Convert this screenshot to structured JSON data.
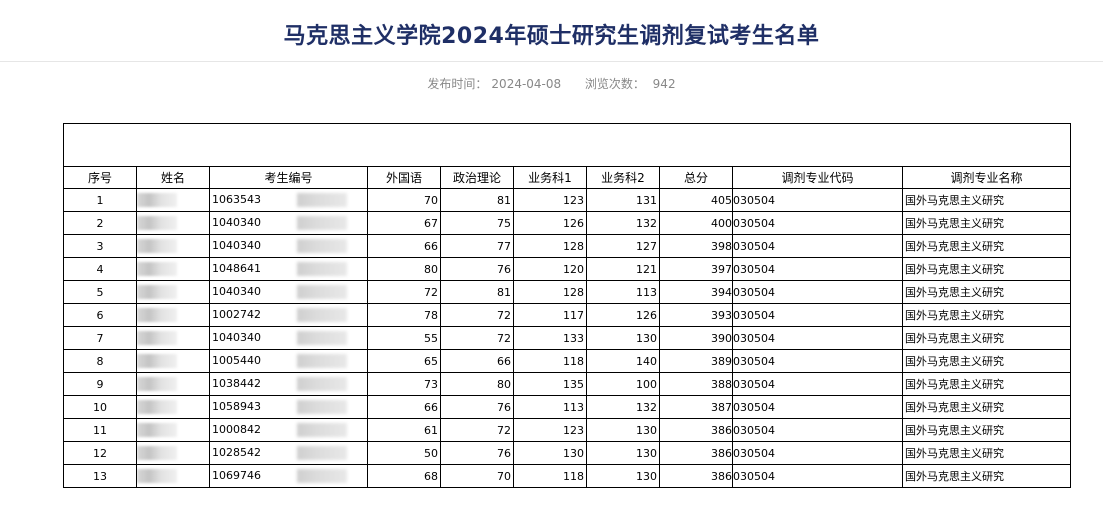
{
  "header": {
    "title": "马克思主义学院2024年硕士研究生调剂复试考生名单",
    "publish_label": "发布时间：",
    "publish_date": "2024-04-08",
    "views_label": "浏览次数：",
    "views_count": "942"
  },
  "table": {
    "columns": [
      "序号",
      "姓名",
      "考生编号",
      "外国语",
      "政治理论",
      "业务科1",
      "业务科2",
      "总分",
      "调剂专业代码",
      "调剂专业名称"
    ],
    "rows": [
      {
        "no": "1",
        "id": "1063543",
        "foreign": "70",
        "politics": "81",
        "sub1": "123",
        "sub2": "131",
        "total": "405",
        "code": "030504",
        "major": "国外马克思主义研究"
      },
      {
        "no": "2",
        "id": "1040340",
        "foreign": "67",
        "politics": "75",
        "sub1": "126",
        "sub2": "132",
        "total": "400",
        "code": "030504",
        "major": "国外马克思主义研究"
      },
      {
        "no": "3",
        "id": "1040340",
        "foreign": "66",
        "politics": "77",
        "sub1": "128",
        "sub2": "127",
        "total": "398",
        "code": "030504",
        "major": "国外马克思主义研究"
      },
      {
        "no": "4",
        "id": "1048641",
        "foreign": "80",
        "politics": "76",
        "sub1": "120",
        "sub2": "121",
        "total": "397",
        "code": "030504",
        "major": "国外马克思主义研究"
      },
      {
        "no": "5",
        "id": "1040340",
        "foreign": "72",
        "politics": "81",
        "sub1": "128",
        "sub2": "113",
        "total": "394",
        "code": "030504",
        "major": "国外马克思主义研究"
      },
      {
        "no": "6",
        "id": "1002742",
        "foreign": "78",
        "politics": "72",
        "sub1": "117",
        "sub2": "126",
        "total": "393",
        "code": "030504",
        "major": "国外马克思主义研究"
      },
      {
        "no": "7",
        "id": "1040340",
        "foreign": "55",
        "politics": "72",
        "sub1": "133",
        "sub2": "130",
        "total": "390",
        "code": "030504",
        "major": "国外马克思主义研究"
      },
      {
        "no": "8",
        "id": "1005440",
        "foreign": "65",
        "politics": "66",
        "sub1": "118",
        "sub2": "140",
        "total": "389",
        "code": "030504",
        "major": "国外马克思主义研究"
      },
      {
        "no": "9",
        "id": "1038442",
        "foreign": "73",
        "politics": "80",
        "sub1": "135",
        "sub2": "100",
        "total": "388",
        "code": "030504",
        "major": "国外马克思主义研究"
      },
      {
        "no": "10",
        "id": "1058943",
        "foreign": "66",
        "politics": "76",
        "sub1": "113",
        "sub2": "132",
        "total": "387",
        "code": "030504",
        "major": "国外马克思主义研究"
      },
      {
        "no": "11",
        "id": "1000842",
        "foreign": "61",
        "politics": "72",
        "sub1": "123",
        "sub2": "130",
        "total": "386",
        "code": "030504",
        "major": "国外马克思主义研究"
      },
      {
        "no": "12",
        "id": "1028542",
        "foreign": "50",
        "politics": "76",
        "sub1": "130",
        "sub2": "130",
        "total": "386",
        "code": "030504",
        "major": "国外马克思主义研究"
      },
      {
        "no": "13",
        "id": "1069746",
        "foreign": "68",
        "politics": "70",
        "sub1": "118",
        "sub2": "130",
        "total": "386",
        "code": "030504",
        "major": "国外马克思主义研究"
      }
    ]
  }
}
